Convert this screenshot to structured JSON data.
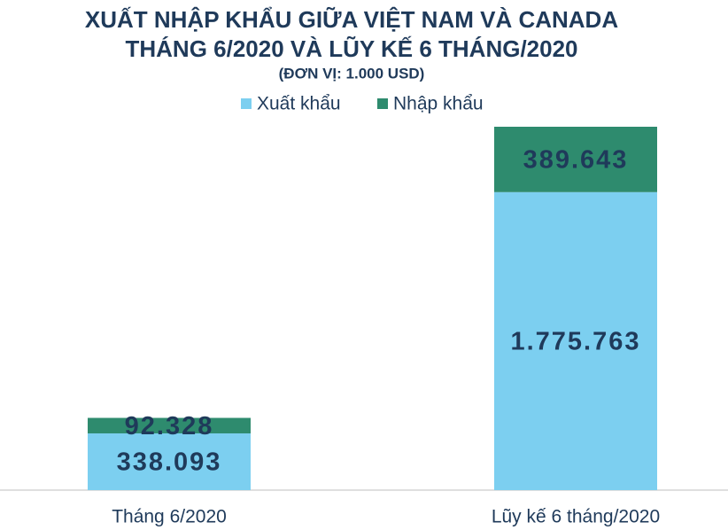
{
  "chart_data": {
    "type": "stacked_bar",
    "title": "XUẤT NHẬP KHẨU GIỮA VIỆT NAM VÀ CANADA",
    "subtitle": "THÁNG 6/2020 VÀ LŨY KẾ 6 THÁNG/2020",
    "unit_label": "(ĐƠN VỊ: 1.000 USD)",
    "categories": [
      "Tháng 6/2020",
      "Lũy kế 6 tháng/2020"
    ],
    "series": [
      {
        "name": "Xuất khẩu",
        "color": "#7ccff0",
        "values": [
          338093,
          1775763
        ],
        "value_labels": [
          "338.093",
          "1.775.763"
        ]
      },
      {
        "name": "Nhập khẩu",
        "color": "#2e8b6e",
        "values": [
          92328,
          389643
        ],
        "value_labels": [
          "92.328",
          "389.643"
        ]
      }
    ],
    "legend": "top"
  }
}
